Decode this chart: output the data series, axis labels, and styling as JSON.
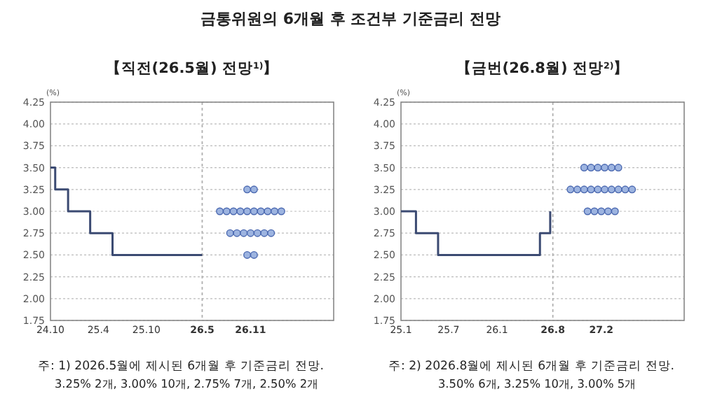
{
  "chart_data": [
    {
      "type": "step",
      "title": "금통위원의 6개월 후 조건부 기준금리 전망",
      "subtitle": "【직전(26.5월) 전망$^{1)}$】",
      "ylabel": "(%)",
      "xlim": [
        "2024-10",
        "2027-09-13"
      ],
      "ylim": [
        1.75,
        4.25
      ],
      "xticks": [
        {
          "value": "2024-10",
          "label": "24.10"
        },
        {
          "value": "2025-04",
          "label": "25.4"
        },
        {
          "value": "2025-10",
          "label": "25.10"
        },
        {
          "value": "2026-05",
          "label": "26.5"
        },
        {
          "value": "2026-11",
          "label": "26.11"
        }
      ],
      "yticks": [
        1.75,
        {
          "value": 2,
          "label": "2.00"
        },
        2.25,
        {
          "value": 2.5,
          "label": "2.50"
        },
        2.75,
        {
          "value": 3,
          "label": "3.00"
        },
        3.25,
        {
          "value": 3.5,
          "label": "3.50"
        },
        3.75,
        {
          "value": 4,
          "label": "4.00"
        },
        4.25
      ],
      "grid": "y",
      "ref_lines": [
        {
          "axis": "x",
          "value": "2026-05",
          "color": "#b0b0b0",
          "line_style": "dotted"
        }
      ],
      "series": [
        {
          "color": "#3b4a72",
          "x": [
            "2024-10",
            "2024-10-19",
            "2024-12-07",
            "2025-03",
            "2025-05-25",
            "2026-05"
          ],
          "values": [
            3.5,
            3.25,
            3,
            2.75,
            2.5,
            2.5
          ]
        },
        {
          "type": "scatter",
          "color": "#9db4e0",
          "marker": "circle",
          "x": [
            "2026-10-19",
            "2026-11-14",
            "2026-07-07",
            "2026-08-02",
            "2026-08-28",
            "2026-09-23",
            "2026-10-19",
            "2026-11-14",
            "2026-12-10",
            "2027-01-05",
            "2027-01-31",
            "2027-02-26",
            "2026-08-15",
            "2026-09-10",
            "2026-10-06",
            "2026-11-01",
            "2026-11-27",
            "2026-12-23",
            "2027-01-18",
            "2026-10-19",
            "2026-11-14"
          ],
          "values": [
            3.25,
            3.25,
            3,
            3,
            3,
            3,
            3,
            3,
            3,
            3,
            3,
            3,
            2.75,
            2.75,
            2.75,
            2.75,
            2.75,
            2.75,
            2.75,
            2.5,
            2.5
          ]
        }
      ],
      "annotations": [
        "주: 1) 2026.5월에 제시된 6개월 후 기준금리 전망.",
        "3.25% 2개,  3.00% 10개,  2.75% 7개,  2.50% 2개"
      ]
    },
    {
      "type": "step",
      "subtitle": "【금번(26.8월) 전망$^{2)}$】",
      "ylabel": "(%)",
      "xlim": [
        "2025-01",
        "2027-12-13"
      ],
      "ylim": [
        1.75,
        4.25
      ],
      "xticks": [
        {
          "value": "2025-01",
          "label": "25.1"
        },
        {
          "value": "2025-07",
          "label": "25.7"
        },
        {
          "value": "2026-01",
          "label": "26.1"
        },
        {
          "value": "2026-08",
          "label": "26.8"
        },
        {
          "value": "2027-02",
          "label": "27.2"
        }
      ],
      "yticks": [
        1.75,
        {
          "value": 2,
          "label": "2.00"
        },
        2.25,
        {
          "value": 2.5,
          "label": "2.50"
        },
        2.75,
        {
          "value": 3,
          "label": "3.00"
        },
        3.25,
        {
          "value": 3.5,
          "label": "3.50"
        },
        3.75,
        {
          "value": 4,
          "label": "4.00"
        },
        4.25
      ],
      "grid": "y",
      "ref_lines": [
        {
          "axis": "x",
          "value": "2026-08",
          "color": "#b0b0b0",
          "line_style": "dotted"
        }
      ],
      "series": [
        {
          "color": "#3b4a72",
          "x": [
            "2025-01",
            "2025-02-27",
            "2025-05-22",
            "2026-06-13",
            "2026-07-22"
          ],
          "values": [
            3,
            2.75,
            2.5,
            2.75,
            3
          ]
        },
        {
          "type": "scatter",
          "color": "#9db4e0",
          "marker": "circle",
          "x": [
            "2026-11-28",
            "2026-12-24",
            "2027-01-19",
            "2027-02-14",
            "2027-03-12",
            "2027-04-07",
            "2026-10-07",
            "2026-11-02",
            "2026-11-28",
            "2026-12-24",
            "2027-01-19",
            "2027-02-14",
            "2027-03-12",
            "2027-04-07",
            "2027-05-03",
            "2027-05-29",
            "2026-12-11",
            "2027-01-06",
            "2027-02-01",
            "2027-02-27",
            "2027-03-25"
          ],
          "values": [
            3.5,
            3.5,
            3.5,
            3.5,
            3.5,
            3.5,
            3.25,
            3.25,
            3.25,
            3.25,
            3.25,
            3.25,
            3.25,
            3.25,
            3.25,
            3.25,
            3,
            3,
            3,
            3,
            3
          ]
        }
      ],
      "annotations": [
        "주: 2) 2026.8월에 제시된 6개월 후 기준금리 전망.",
        "3.50%  6개,  3.25% 10개,  3.00% 5개"
      ]
    }
  ]
}
